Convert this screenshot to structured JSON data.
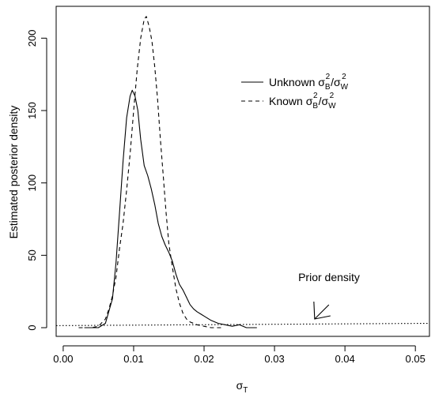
{
  "chart_data": {
    "type": "line",
    "xlabel": "σ",
    "xlabel_sub": "T",
    "ylabel": "Estimated posterior density",
    "xlim": [
      -0.001,
      0.052
    ],
    "ylim": [
      -6,
      222
    ],
    "x_ticks": [
      0.0,
      0.01,
      0.02,
      0.03,
      0.04,
      0.05
    ],
    "x_tick_labels": [
      "0.00",
      "0.01",
      "0.02",
      "0.03",
      "0.04",
      "0.05"
    ],
    "y_ticks": [
      0,
      50,
      100,
      150,
      200
    ],
    "y_tick_labels": [
      "0",
      "50",
      "100",
      "150",
      "200"
    ],
    "grid": false,
    "legend_position": "top-right",
    "series": [
      {
        "legend": {
          "prefix": "Unknown ",
          "s1": "σ",
          "sub1": "B",
          "sup1": "2",
          "slash": "/",
          "s2": "σ",
          "sub2": "W",
          "sup2": "2"
        },
        "line_style": "solid",
        "x": [
          0.003,
          0.005,
          0.006,
          0.007,
          0.0075,
          0.008,
          0.0085,
          0.009,
          0.0095,
          0.0098,
          0.0102,
          0.0106,
          0.011,
          0.0115,
          0.012,
          0.0125,
          0.013,
          0.0135,
          0.014,
          0.0145,
          0.015,
          0.0155,
          0.016,
          0.0165,
          0.017,
          0.0175,
          0.018,
          0.0185,
          0.019,
          0.02,
          0.021,
          0.022,
          0.023,
          0.024,
          0.025,
          0.026,
          0.0275
        ],
        "y": [
          0,
          0,
          3,
          20,
          45,
          80,
          115,
          145,
          160,
          164,
          160,
          150,
          130,
          112,
          105,
          96,
          85,
          72,
          63,
          57,
          52,
          46,
          37,
          30,
          26,
          21,
          16,
          13,
          11,
          8,
          5,
          3,
          2,
          1,
          2,
          0,
          0
        ]
      },
      {
        "legend": {
          "prefix": "Known ",
          "s1": "σ",
          "sub1": "B",
          "sup1": "2",
          "slash": "/",
          "s2": "σ",
          "sub2": "W",
          "sup2": "2"
        },
        "line_style": "dashed",
        "x": [
          0.0022,
          0.004,
          0.005,
          0.006,
          0.0065,
          0.007,
          0.0075,
          0.008,
          0.0085,
          0.009,
          0.0095,
          0.01,
          0.0105,
          0.011,
          0.0115,
          0.0118,
          0.0122,
          0.0126,
          0.013,
          0.0134,
          0.0138,
          0.0142,
          0.0146,
          0.015,
          0.0155,
          0.016,
          0.0165,
          0.017,
          0.0175,
          0.018,
          0.019,
          0.02,
          0.021,
          0.022,
          0.0225
        ],
        "y": [
          0,
          0,
          1,
          6,
          13,
          22,
          35,
          55,
          72,
          95,
          120,
          150,
          178,
          200,
          213,
          215,
          208,
          198,
          180,
          158,
          130,
          105,
          80,
          58,
          42,
          27,
          17,
          10,
          6,
          4,
          2,
          1,
          0,
          0,
          0
        ]
      },
      {
        "line_style": "dotted",
        "x": [
          -0.001,
          0.052
        ],
        "y": [
          1.4,
          3.0
        ]
      }
    ],
    "annotations": [
      {
        "text": "Prior density",
        "x": 0.0355,
        "y": 45,
        "arrow_to": [
          0.0357,
          6
        ]
      }
    ]
  }
}
